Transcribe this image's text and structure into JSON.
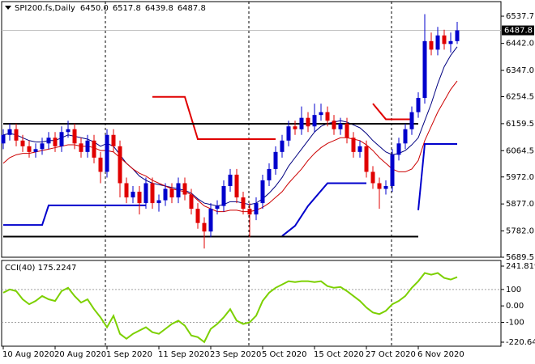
{
  "chart_data": [
    {
      "type": "candlestick",
      "title": "SPI200.fs,Daily",
      "header_values": [
        {
          "value": 6450,
          "label": "6450.0"
        },
        {
          "value": 6517.8,
          "label": "6517.8"
        },
        {
          "value": 6439.8,
          "label": "6439.8"
        },
        {
          "value": 6487.8,
          "label": "6487.8"
        }
      ],
      "categories": [
        "10 Aug 2020",
        null,
        null,
        null,
        null,
        null,
        null,
        null,
        "20 Aug 2020",
        null,
        null,
        null,
        null,
        null,
        null,
        null,
        "1 Sep 2020",
        null,
        null,
        null,
        null,
        null,
        null,
        null,
        "11 Sep 2020",
        null,
        null,
        null,
        null,
        null,
        null,
        null,
        "23 Sep 2020",
        null,
        null,
        null,
        null,
        null,
        null,
        null,
        "5 Oct 2020",
        null,
        null,
        null,
        null,
        null,
        null,
        null,
        "15 Oct 2020",
        null,
        null,
        null,
        null,
        null,
        null,
        null,
        "27 Oct 2020",
        null,
        null,
        null,
        null,
        null,
        null,
        null,
        "6 Nov 2020",
        null,
        null,
        null,
        null,
        null,
        null
      ],
      "open": [
        6090,
        6120,
        6140,
        6100,
        6080,
        6060,
        6070,
        6090,
        6110,
        6080,
        6130,
        6140,
        6090,
        6060,
        6100,
        6040,
        5990,
        6120,
        6080,
        5950,
        5900,
        5920,
        5880,
        5950,
        5880,
        5890,
        5930,
        5900,
        5950,
        5910,
        5860,
        5810,
        5780,
        5860,
        5870,
        5940,
        5980,
        5900,
        5860,
        5840,
        5880,
        5960,
        6000,
        6060,
        6100,
        6150,
        6140,
        6180,
        6150,
        6190,
        6200,
        6170,
        6140,
        6160,
        6110,
        6060,
        6080,
        5990,
        5950,
        5930,
        5940,
        6050,
        6090,
        6140,
        6200,
        6250,
        6450,
        6420,
        6470,
        6440,
        6450
      ],
      "high": [
        6140,
        6160,
        6160,
        6120,
        6100,
        6090,
        6110,
        6130,
        6130,
        6150,
        6170,
        6160,
        6110,
        6120,
        6120,
        6060,
        6140,
        6140,
        6100,
        5970,
        5940,
        5940,
        5970,
        5970,
        5910,
        5950,
        5950,
        5970,
        5970,
        5930,
        5880,
        5830,
        5880,
        5890,
        5960,
        6000,
        6000,
        5920,
        5880,
        5900,
        5980,
        6020,
        6080,
        6120,
        6170,
        6170,
        6220,
        6200,
        6230,
        6230,
        6220,
        6190,
        6180,
        6180,
        6130,
        6100,
        6100,
        6010,
        5970,
        5960,
        6070,
        6110,
        6160,
        6220,
        6270,
        6545,
        6480,
        6500,
        6490,
        6480,
        6517.8
      ],
      "low": [
        6070,
        6100,
        6080,
        6060,
        6040,
        6040,
        6050,
        6070,
        6060,
        6060,
        6110,
        6070,
        6040,
        6040,
        6020,
        5950,
        5970,
        6060,
        5900,
        5880,
        5880,
        5840,
        5860,
        5860,
        5850,
        5870,
        5880,
        5880,
        5890,
        5840,
        5790,
        5720,
        5760,
        5840,
        5850,
        5920,
        5880,
        5840,
        5760,
        5820,
        5860,
        5940,
        5980,
        6040,
        6080,
        6120,
        6120,
        6130,
        6130,
        6170,
        6150,
        6120,
        6120,
        6090,
        6040,
        6040,
        5970,
        5930,
        5860,
        5910,
        5920,
        6030,
        6070,
        6120,
        6180,
        6230,
        6400,
        6400,
        6420,
        6410,
        6439.8
      ],
      "close": [
        6120,
        6140,
        6100,
        6080,
        6060,
        6070,
        6090,
        6110,
        6080,
        6130,
        6140,
        6090,
        6060,
        6100,
        6040,
        5990,
        6120,
        6080,
        5950,
        5900,
        5920,
        5880,
        5950,
        5880,
        5890,
        5930,
        5900,
        5950,
        5910,
        5860,
        5810,
        5780,
        5860,
        5870,
        5940,
        5980,
        5900,
        5860,
        5840,
        5880,
        5960,
        6000,
        6060,
        6100,
        6150,
        6140,
        6180,
        6150,
        6190,
        6200,
        6170,
        6140,
        6160,
        6110,
        6060,
        6080,
        5990,
        5950,
        5930,
        5940,
        6050,
        6090,
        6140,
        6200,
        6250,
        6450,
        6420,
        6470,
        6440,
        6450,
        6487.8
      ],
      "up_color": "#0000cc",
      "down_color": "#e00000",
      "ylim": [
        5689.5,
        6589
      ],
      "yticks": [
        6537.7,
        {
          "value": 6442,
          "label": "6442.0"
        },
        {
          "value": 6347,
          "label": "6347.0"
        },
        6254.5,
        6159.5,
        6064.5,
        {
          "value": 5972,
          "label": "5972.0"
        },
        {
          "value": 5877,
          "label": "5877.0"
        },
        {
          "value": 5782,
          "label": "5782.0"
        },
        5689.5
      ],
      "indicators": [
        {
          "color": "#000080",
          "width": 1,
          "values": [
            6120,
            6125,
            6120,
            6110,
            6100,
            6095,
            6095,
            6100,
            6100,
            6110,
            6120,
            6115,
            6110,
            6105,
            6095,
            6080,
            6090,
            6080,
            6050,
            6020,
            6000,
            5975,
            5960,
            5950,
            5945,
            5940,
            5935,
            5930,
            5925,
            5915,
            5895,
            5880,
            5875,
            5870,
            5875,
            5885,
            5885,
            5880,
            5875,
            5880,
            5895,
            5915,
            5940,
            5970,
            6010,
            6040,
            6070,
            6100,
            6130,
            6150,
            6160,
            6165,
            6170,
            6165,
            6155,
            6145,
            6125,
            6100,
            6080,
            6060,
            6050,
            6055,
            6065,
            6085,
            6110,
            6170,
            6230,
            6300,
            6360,
            6400,
            6430
          ]
        },
        {
          "color": "#cc0000",
          "width": 1,
          "values": [
            6020,
            6040,
            6050,
            6055,
            6055,
            6060,
            6065,
            6070,
            6075,
            6080,
            6085,
            6085,
            6080,
            6080,
            6075,
            6065,
            6065,
            6060,
            6040,
            6020,
            6000,
            5985,
            5975,
            5960,
            5950,
            5940,
            5930,
            5925,
            5920,
            5910,
            5890,
            5870,
            5860,
            5850,
            5850,
            5855,
            5855,
            5850,
            5850,
            5855,
            5865,
            5880,
            5900,
            5920,
            5950,
            5975,
            6000,
            6030,
            6055,
            6075,
            6090,
            6100,
            6110,
            6110,
            6105,
            6100,
            6085,
            6065,
            6040,
            6020,
            6000,
            5990,
            5990,
            6000,
            6030,
            6100,
            6150,
            6200,
            6240,
            6280,
            6310
          ]
        },
        {
          "color": "#e00000",
          "width": 2,
          "x": [
            23,
            28,
            30,
            42,
            null,
            57,
            59,
            63
          ],
          "values": [
            6254,
            6254,
            6105,
            6105,
            null,
            6230,
            6175,
            6175
          ]
        },
        {
          "color": "#0000cc",
          "width": 2,
          "x": [
            0,
            6,
            7,
            22,
            null,
            43,
            45,
            47,
            50,
            56,
            null,
            64,
            65,
            70
          ],
          "values": [
            5803,
            5803,
            5872,
            5872,
            null,
            5764,
            5800,
            5870,
            5950,
            5950,
            null,
            5855,
            6088,
            6088
          ]
        },
        {
          "color": "#000000",
          "width": 2,
          "x": [
            0,
            64
          ],
          "values": [
            6159,
            6159
          ]
        },
        {
          "color": "#000000",
          "width": 2,
          "x": [
            0,
            64
          ],
          "values": [
            5762,
            5762
          ]
        }
      ]
    },
    {
      "type": "line",
      "title": "CCI(40)",
      "color": "#7cd000",
      "values": [
        80,
        100,
        90,
        40,
        10,
        30,
        60,
        40,
        30,
        90,
        110,
        60,
        20,
        40,
        -20,
        -70,
        -130,
        -60,
        -170,
        -200,
        -170,
        -150,
        -130,
        -160,
        -170,
        -140,
        -110,
        -90,
        -120,
        -180,
        -190,
        -220,
        -140,
        -110,
        -70,
        -20,
        -90,
        -110,
        -100,
        -60,
        30,
        80,
        110,
        130,
        150,
        145,
        150,
        150,
        145,
        150,
        120,
        110,
        115,
        90,
        60,
        30,
        -10,
        -40,
        -50,
        -30,
        10,
        30,
        60,
        110,
        150,
        200,
        190,
        200,
        170,
        160,
        175.2247
      ],
      "ylim": [
        -220.64,
        241.8193
      ],
      "yticks": [
        241.8193,
        100,
        {
          "value": 0,
          "label": "0.00"
        },
        -100,
        {
          "value": -220.64,
          "label": "-220.640"
        }
      ],
      "levels": [
        100,
        -100
      ]
    }
  ]
}
